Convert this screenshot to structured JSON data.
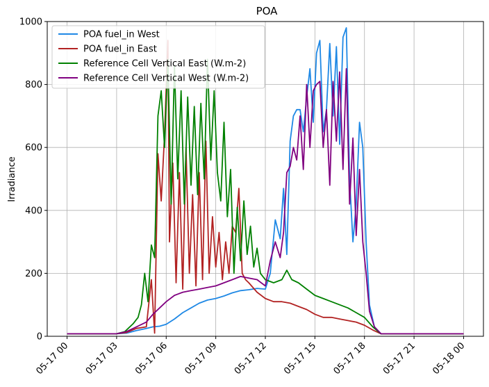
{
  "chart_data": {
    "type": "line",
    "title": "POA",
    "xlabel": "",
    "ylabel": "Irradiance",
    "xlim": [
      "2024-05-16 23:00",
      "2024-05-18 01:00"
    ],
    "ylim": [
      0,
      1000
    ],
    "x_ticks": [
      "05-17 00",
      "05-17 03",
      "05-17 06",
      "05-17 09",
      "05-17 12",
      "05-17 15",
      "05-17 18",
      "05-17 21",
      "05-18 00"
    ],
    "y_ticks": [
      0,
      200,
      400,
      600,
      800,
      1000
    ],
    "grid": true,
    "legend_position": "upper-left",
    "x_hours_start": "05-17 00",
    "series": [
      {
        "name": "POA fuel_in West",
        "color": "#1e88e5",
        "points": [
          [
            0,
            8
          ],
          [
            3,
            8
          ],
          [
            3.6,
            10
          ],
          [
            4.2,
            18
          ],
          [
            4.8,
            25
          ],
          [
            5.2,
            30
          ],
          [
            5.6,
            32
          ],
          [
            6,
            38
          ],
          [
            6.5,
            55
          ],
          [
            7,
            75
          ],
          [
            7.5,
            90
          ],
          [
            8,
            105
          ],
          [
            8.5,
            115
          ],
          [
            9,
            120
          ],
          [
            9.5,
            128
          ],
          [
            10,
            138
          ],
          [
            10.5,
            145
          ],
          [
            11,
            148
          ],
          [
            11.5,
            152
          ],
          [
            12,
            150
          ],
          [
            12.3,
            200
          ],
          [
            12.6,
            370
          ],
          [
            12.9,
            310
          ],
          [
            13.1,
            470
          ],
          [
            13.3,
            260
          ],
          [
            13.5,
            620
          ],
          [
            13.7,
            700
          ],
          [
            13.9,
            720
          ],
          [
            14.1,
            720
          ],
          [
            14.3,
            650
          ],
          [
            14.5,
            760
          ],
          [
            14.7,
            850
          ],
          [
            14.9,
            680
          ],
          [
            15.1,
            900
          ],
          [
            15.3,
            940
          ],
          [
            15.5,
            650
          ],
          [
            15.7,
            720
          ],
          [
            15.9,
            930
          ],
          [
            16.1,
            700
          ],
          [
            16.3,
            920
          ],
          [
            16.5,
            610
          ],
          [
            16.7,
            950
          ],
          [
            16.9,
            980
          ],
          [
            17.1,
            500
          ],
          [
            17.3,
            300
          ],
          [
            17.5,
            420
          ],
          [
            17.7,
            680
          ],
          [
            17.9,
            600
          ],
          [
            18.1,
            300
          ],
          [
            18.3,
            100
          ],
          [
            18.6,
            30
          ],
          [
            19,
            8
          ],
          [
            24,
            8
          ]
        ]
      },
      {
        "name": "POA fuel_in East",
        "color": "#b22222",
        "points": [
          [
            0,
            8
          ],
          [
            3,
            8
          ],
          [
            3.6,
            12
          ],
          [
            4.2,
            25
          ],
          [
            4.8,
            30
          ],
          [
            5.1,
            180
          ],
          [
            5.3,
            10
          ],
          [
            5.5,
            580
          ],
          [
            5.7,
            430
          ],
          [
            5.9,
            640
          ],
          [
            6.1,
            940
          ],
          [
            6.2,
            300
          ],
          [
            6.4,
            550
          ],
          [
            6.6,
            170
          ],
          [
            6.8,
            520
          ],
          [
            7,
            150
          ],
          [
            7.2,
            600
          ],
          [
            7.4,
            200
          ],
          [
            7.6,
            450
          ],
          [
            7.8,
            160
          ],
          [
            8,
            520
          ],
          [
            8.2,
            180
          ],
          [
            8.4,
            620
          ],
          [
            8.6,
            200
          ],
          [
            8.8,
            380
          ],
          [
            9,
            220
          ],
          [
            9.2,
            330
          ],
          [
            9.4,
            180
          ],
          [
            9.6,
            300
          ],
          [
            9.8,
            200
          ],
          [
            10,
            350
          ],
          [
            10.2,
            330
          ],
          [
            10.4,
            470
          ],
          [
            10.6,
            200
          ],
          [
            10.8,
            180
          ],
          [
            11,
            170
          ],
          [
            11.5,
            140
          ],
          [
            12,
            120
          ],
          [
            12.5,
            110
          ],
          [
            13,
            110
          ],
          [
            13.5,
            105
          ],
          [
            14,
            95
          ],
          [
            14.5,
            85
          ],
          [
            15,
            70
          ],
          [
            15.5,
            60
          ],
          [
            16,
            60
          ],
          [
            16.5,
            55
          ],
          [
            17,
            50
          ],
          [
            17.5,
            45
          ],
          [
            18,
            35
          ],
          [
            18.5,
            20
          ],
          [
            19,
            8
          ],
          [
            24,
            8
          ]
        ]
      },
      {
        "name": "Reference Cell Vertical East (W.m-2)",
        "color": "#008000",
        "points": [
          [
            0,
            8
          ],
          [
            3,
            8
          ],
          [
            3.5,
            15
          ],
          [
            4,
            40
          ],
          [
            4.3,
            60
          ],
          [
            4.5,
            100
          ],
          [
            4.7,
            200
          ],
          [
            4.9,
            110
          ],
          [
            5.1,
            290
          ],
          [
            5.3,
            250
          ],
          [
            5.5,
            700
          ],
          [
            5.7,
            780
          ],
          [
            5.9,
            600
          ],
          [
            6.1,
            880
          ],
          [
            6.3,
            420
          ],
          [
            6.5,
            860
          ],
          [
            6.7,
            500
          ],
          [
            6.9,
            780
          ],
          [
            7.1,
            420
          ],
          [
            7.3,
            760
          ],
          [
            7.5,
            480
          ],
          [
            7.7,
            730
          ],
          [
            7.9,
            450
          ],
          [
            8.1,
            740
          ],
          [
            8.3,
            500
          ],
          [
            8.5,
            880
          ],
          [
            8.7,
            560
          ],
          [
            8.9,
            780
          ],
          [
            9.1,
            520
          ],
          [
            9.3,
            430
          ],
          [
            9.5,
            680
          ],
          [
            9.7,
            380
          ],
          [
            9.9,
            530
          ],
          [
            10.1,
            200
          ],
          [
            10.3,
            410
          ],
          [
            10.5,
            240
          ],
          [
            10.7,
            430
          ],
          [
            10.9,
            260
          ],
          [
            11.1,
            350
          ],
          [
            11.3,
            220
          ],
          [
            11.5,
            280
          ],
          [
            11.7,
            200
          ],
          [
            12,
            180
          ],
          [
            12.5,
            170
          ],
          [
            13,
            180
          ],
          [
            13.3,
            210
          ],
          [
            13.6,
            180
          ],
          [
            14,
            170
          ],
          [
            14.5,
            150
          ],
          [
            15,
            130
          ],
          [
            15.5,
            120
          ],
          [
            16,
            110
          ],
          [
            16.5,
            100
          ],
          [
            17,
            90
          ],
          [
            17.5,
            75
          ],
          [
            18,
            60
          ],
          [
            18.5,
            30
          ],
          [
            19,
            8
          ],
          [
            24,
            8
          ]
        ]
      },
      {
        "name": "Reference Cell Vertical West (W.m-2)",
        "color": "#800080",
        "points": [
          [
            0,
            8
          ],
          [
            3,
            8
          ],
          [
            3.6,
            15
          ],
          [
            4.2,
            30
          ],
          [
            4.8,
            45
          ],
          [
            5.2,
            70
          ],
          [
            5.6,
            90
          ],
          [
            6,
            110
          ],
          [
            6.5,
            130
          ],
          [
            7,
            140
          ],
          [
            7.5,
            145
          ],
          [
            8,
            150
          ],
          [
            8.5,
            155
          ],
          [
            9,
            160
          ],
          [
            9.5,
            170
          ],
          [
            10,
            180
          ],
          [
            10.5,
            190
          ],
          [
            11,
            185
          ],
          [
            11.5,
            180
          ],
          [
            12,
            160
          ],
          [
            12.3,
            240
          ],
          [
            12.6,
            300
          ],
          [
            12.9,
            250
          ],
          [
            13.1,
            330
          ],
          [
            13.3,
            520
          ],
          [
            13.5,
            540
          ],
          [
            13.7,
            600
          ],
          [
            13.9,
            560
          ],
          [
            14.1,
            700
          ],
          [
            14.3,
            530
          ],
          [
            14.5,
            800
          ],
          [
            14.7,
            600
          ],
          [
            14.9,
            780
          ],
          [
            15.1,
            800
          ],
          [
            15.3,
            810
          ],
          [
            15.5,
            600
          ],
          [
            15.7,
            720
          ],
          [
            15.9,
            480
          ],
          [
            16.1,
            810
          ],
          [
            16.3,
            620
          ],
          [
            16.5,
            840
          ],
          [
            16.7,
            530
          ],
          [
            16.9,
            850
          ],
          [
            17.1,
            420
          ],
          [
            17.3,
            630
          ],
          [
            17.5,
            320
          ],
          [
            17.7,
            530
          ],
          [
            17.9,
            300
          ],
          [
            18.1,
            200
          ],
          [
            18.3,
            80
          ],
          [
            18.6,
            30
          ],
          [
            19,
            8
          ],
          [
            24,
            8
          ]
        ]
      }
    ]
  }
}
